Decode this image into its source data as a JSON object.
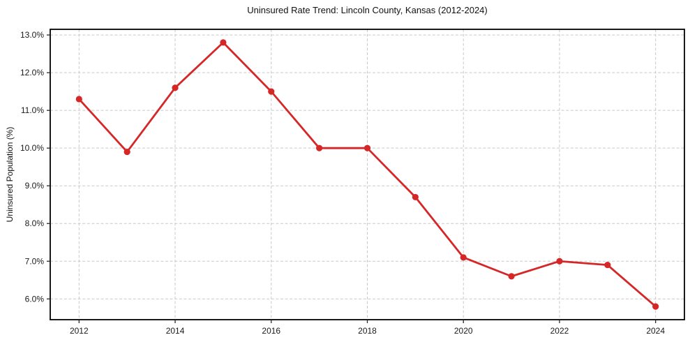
{
  "chart_data": {
    "type": "line",
    "title": "Uninsured Rate Trend: Lincoln County, Kansas (2012-2024)",
    "xlabel": "",
    "ylabel": "Uninsured Population (%)",
    "x": [
      2012,
      2013,
      2014,
      2015,
      2016,
      2017,
      2018,
      2019,
      2020,
      2021,
      2022,
      2023,
      2024
    ],
    "values": [
      11.3,
      9.9,
      11.6,
      12.8,
      11.5,
      10.0,
      10.0,
      8.7,
      7.1,
      6.6,
      7.0,
      6.9,
      5.8
    ],
    "xlim": [
      2011.4,
      2024.6
    ],
    "ylim": [
      5.45,
      13.15
    ],
    "xticks": {
      "values": [
        2012,
        2014,
        2016,
        2018,
        2020,
        2022,
        2024
      ],
      "labels": [
        "2012",
        "2014",
        "2016",
        "2018",
        "2020",
        "2022",
        "2024"
      ]
    },
    "yticks": {
      "values": [
        6,
        7,
        8,
        9,
        10,
        11,
        12,
        13
      ],
      "labels": [
        "6.0%",
        "7.0%",
        "8.0%",
        "9.0%",
        "10.0%",
        "11.0%",
        "12.0%",
        "13.0%"
      ]
    },
    "grid": "dashed-both",
    "legend": "none",
    "colors": {
      "line": "#d62728",
      "marker": "#d62728",
      "grid": "#c9c9c9",
      "axis_border": "#000000",
      "tick": "#262626",
      "background": "#ffffff"
    }
  }
}
